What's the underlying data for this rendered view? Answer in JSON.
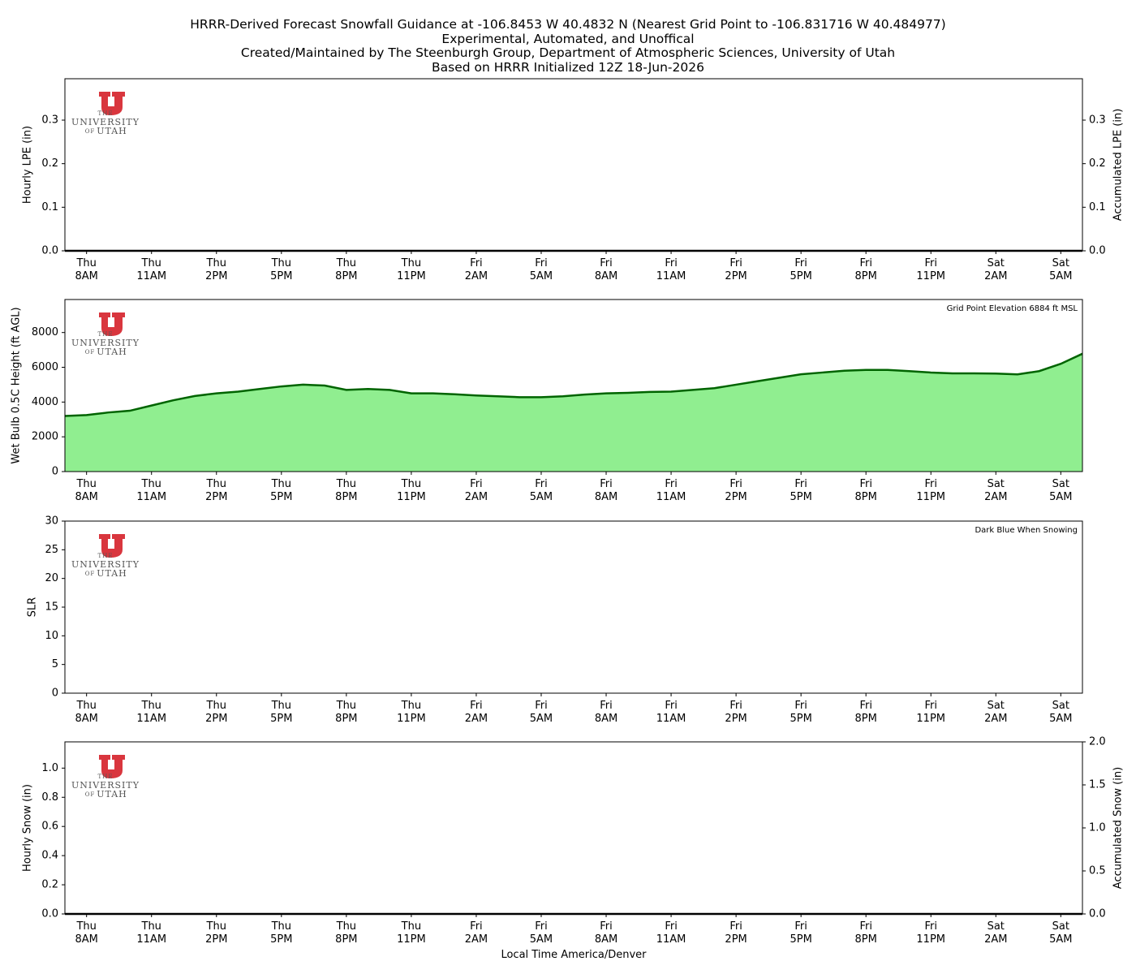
{
  "title": [
    "HRRR-Derived Forecast Snowfall Guidance at -106.8453 W 40.4832 N (Nearest Grid Point to -106.831716 W 40.484977)",
    "Experimental, Automated, and Unoffical",
    "Created/Maintained by The Steenburgh Group, Department of Atmospheric Sciences, University of Utah",
    "Based on HRRR Initialized 12Z 18-Jun-2026"
  ],
  "logo": [
    "THE",
    "UNIVERSITY",
    "OF",
    "UTAH"
  ],
  "chart_data": [
    {
      "type": "line",
      "ylabel": "Hourly LPE (in)",
      "y2label": "Accumulated LPE (in)",
      "color": "#000000",
      "categories": [
        null,
        "Thu\n8AM",
        null,
        null,
        "Thu\n11AM",
        null,
        null,
        "Thu\n2PM",
        null,
        null,
        "Thu\n5PM",
        null,
        null,
        "Thu\n8PM",
        null,
        null,
        "Thu\n11PM",
        null,
        null,
        "Fri\n2AM",
        null,
        null,
        "Fri\n5AM",
        null,
        null,
        "Fri\n8AM",
        null,
        null,
        "Fri\n11AM",
        null,
        null,
        "Fri\n2PM",
        null,
        null,
        "Fri\n5PM",
        null,
        null,
        "Fri\n8PM",
        null,
        null,
        "Fri\n11PM",
        null,
        null,
        "Sat\n2AM",
        null,
        null,
        "Sat\n5AM",
        null
      ],
      "values": [
        0,
        0,
        0,
        0,
        0,
        0,
        0,
        0,
        0,
        0,
        0,
        0,
        0,
        0,
        0,
        0,
        0,
        0,
        0,
        0,
        0,
        0,
        0,
        0,
        0,
        0,
        0,
        0,
        0,
        0,
        0,
        0,
        0,
        0,
        0,
        0,
        0,
        0,
        0,
        0,
        0,
        0,
        0,
        0,
        0,
        0,
        0,
        0
      ],
      "ylim": [
        0,
        0.395
      ],
      "yticks": [
        {
          "value": 0,
          "label": "0.0"
        },
        0.1,
        0.2,
        0.3
      ],
      "y2lim": [
        0,
        0.395
      ],
      "y2ticks": [
        {
          "value": 0,
          "label": "0.0"
        },
        0.1,
        0.2,
        0.3
      ]
    },
    {
      "type": "area",
      "ylabel": "Wet Bulb 0.5C Height (ft AGL)",
      "annotation": "Grid Point Elevation 6884 ft MSL",
      "color": "#006400",
      "fill": "#90ee90",
      "categories": [
        null,
        "Thu\n8AM",
        null,
        null,
        "Thu\n11AM",
        null,
        null,
        "Thu\n2PM",
        null,
        null,
        "Thu\n5PM",
        null,
        null,
        "Thu\n8PM",
        null,
        null,
        "Thu\n11PM",
        null,
        null,
        "Fri\n2AM",
        null,
        null,
        "Fri\n5AM",
        null,
        null,
        "Fri\n8AM",
        null,
        null,
        "Fri\n11AM",
        null,
        null,
        "Fri\n2PM",
        null,
        null,
        "Fri\n5PM",
        null,
        null,
        "Fri\n8PM",
        null,
        null,
        "Fri\n11PM",
        null,
        null,
        "Sat\n2AM",
        null,
        null,
        "Sat\n5AM",
        null
      ],
      "values": [
        3200,
        3250,
        3400,
        3500,
        3800,
        4100,
        4350,
        4500,
        4600,
        4750,
        4900,
        5000,
        4950,
        4700,
        4750,
        4700,
        4500,
        4500,
        4450,
        4380,
        4330,
        4280,
        4280,
        4330,
        4430,
        4500,
        4530,
        4580,
        4600,
        4700,
        4800,
        5000,
        5200,
        5400,
        5600,
        5700,
        5800,
        5850,
        5850,
        5780,
        5700,
        5650,
        5650,
        5640,
        5590,
        5780,
        6200,
        6780
      ],
      "ylim": [
        0,
        9900
      ],
      "yticks": [
        0,
        2000,
        4000,
        6000,
        8000
      ]
    },
    {
      "type": "line",
      "ylabel": "SLR",
      "annotation": "Dark Blue When Snowing",
      "color": "#00008b",
      "categories": [
        null,
        "Thu\n8AM",
        null,
        null,
        "Thu\n11AM",
        null,
        null,
        "Thu\n2PM",
        null,
        null,
        "Thu\n5PM",
        null,
        null,
        "Thu\n8PM",
        null,
        null,
        "Thu\n11PM",
        null,
        null,
        "Fri\n2AM",
        null,
        null,
        "Fri\n5AM",
        null,
        null,
        "Fri\n8AM",
        null,
        null,
        "Fri\n11AM",
        null,
        null,
        "Fri\n2PM",
        null,
        null,
        "Fri\n5PM",
        null,
        null,
        "Fri\n8PM",
        null,
        null,
        "Fri\n11PM",
        null,
        null,
        "Sat\n2AM",
        null,
        null,
        "Sat\n5AM",
        null
      ],
      "ylim": [
        0,
        30
      ],
      "yticks": [
        0,
        5,
        10,
        15,
        20,
        25,
        30
      ]
    },
    {
      "type": "line",
      "ylabel": "Hourly Snow (in)",
      "y2label": "Accumulated Snow (in)",
      "xlabel": "Local Time America/Denver",
      "color": "#000000",
      "categories": [
        null,
        "Thu\n8AM",
        null,
        null,
        "Thu\n11AM",
        null,
        null,
        "Thu\n2PM",
        null,
        null,
        "Thu\n5PM",
        null,
        null,
        "Thu\n8PM",
        null,
        null,
        "Thu\n11PM",
        null,
        null,
        "Fri\n2AM",
        null,
        null,
        "Fri\n5AM",
        null,
        null,
        "Fri\n8AM",
        null,
        null,
        "Fri\n11AM",
        null,
        null,
        "Fri\n2PM",
        null,
        null,
        "Fri\n5PM",
        null,
        null,
        "Fri\n8PM",
        null,
        null,
        "Fri\n11PM",
        null,
        null,
        "Sat\n2AM",
        null,
        null,
        "Sat\n5AM",
        null
      ],
      "values": [
        0,
        0,
        0,
        0,
        0,
        0,
        0,
        0,
        0,
        0,
        0,
        0,
        0,
        0,
        0,
        0,
        0,
        0,
        0,
        0,
        0,
        0,
        0,
        0,
        0,
        0,
        0,
        0,
        0,
        0,
        0,
        0,
        0,
        0,
        0,
        0,
        0,
        0,
        0,
        0,
        0,
        0,
        0,
        0,
        0,
        0,
        0,
        0
      ],
      "ylim": [
        0,
        1.18
      ],
      "yticks": [
        {
          "value": 0,
          "label": "0.0"
        },
        0.2,
        0.4,
        0.6,
        0.8,
        {
          "value": 1,
          "label": "1.0"
        }
      ],
      "y2lim": [
        0,
        2
      ],
      "y2ticks": [
        {
          "value": 0,
          "label": "0.0"
        },
        0.5,
        {
          "value": 1,
          "label": "1.0"
        },
        1.5,
        {
          "value": 2,
          "label": "2.0"
        }
      ]
    }
  ]
}
